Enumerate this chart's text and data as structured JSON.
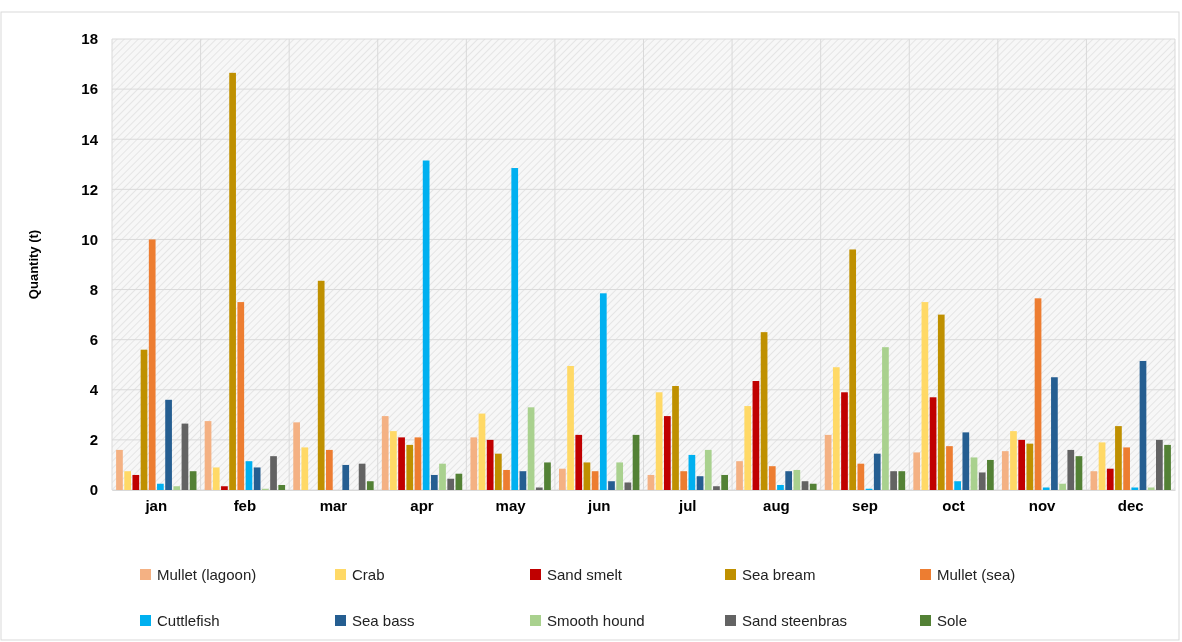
{
  "chart_data": {
    "type": "bar",
    "ylabel": "Quantity (t)",
    "categories": [
      "jan",
      "feb",
      "mar",
      "apr",
      "may",
      "jun",
      "jul",
      "aug",
      "sep",
      "oct",
      "nov",
      "dec"
    ],
    "ylim": [
      0,
      18
    ],
    "yticks": [
      0,
      2,
      4,
      6,
      8,
      10,
      12,
      14,
      16,
      18
    ],
    "grid": true,
    "legend": "bottom",
    "series": [
      {
        "name": "Mullet (lagoon)",
        "color": "#f4b183",
        "values": [
          1.6,
          2.75,
          2.7,
          2.95,
          2.1,
          0.85,
          0.6,
          1.15,
          2.2,
          1.5,
          1.55,
          0.75
        ]
      },
      {
        "name": "Crab",
        "color": "#ffd966",
        "values": [
          0.75,
          0.9,
          1.7,
          2.35,
          3.05,
          4.95,
          3.9,
          3.35,
          4.9,
          7.5,
          2.35,
          1.9
        ]
      },
      {
        "name": "Sand smelt",
        "color": "#c00000",
        "values": [
          0.6,
          0.15,
          0,
          2.1,
          2.0,
          2.2,
          2.95,
          4.35,
          3.9,
          3.7,
          2.0,
          0.85
        ]
      },
      {
        "name": "Sea bream",
        "color": "#bf9000",
        "values": [
          5.6,
          16.65,
          8.35,
          1.8,
          1.45,
          1.1,
          4.15,
          6.3,
          9.6,
          7.0,
          1.85,
          2.55
        ]
      },
      {
        "name": "Mullet (sea)",
        "color": "#ed7d31",
        "values": [
          10.0,
          7.5,
          1.6,
          2.1,
          0.8,
          0.75,
          0.75,
          0.95,
          1.05,
          1.75,
          7.65,
          1.7
        ]
      },
      {
        "name": "Cuttlefish",
        "color": "#00b0f0",
        "values": [
          0.25,
          1.15,
          0,
          13.15,
          12.85,
          7.85,
          1.4,
          0.2,
          0.05,
          0.35,
          0.1,
          0.1
        ]
      },
      {
        "name": "Sea bass",
        "color": "#255e91",
        "values": [
          3.6,
          0.9,
          1.0,
          0.6,
          0.75,
          0.35,
          0.55,
          0.75,
          1.45,
          2.3,
          4.5,
          5.15
        ]
      },
      {
        "name": "Smooth hound",
        "color": "#a9d18e",
        "values": [
          0.15,
          0.05,
          0,
          1.05,
          3.3,
          1.1,
          1.6,
          0.8,
          5.7,
          1.3,
          0.25,
          0.1
        ]
      },
      {
        "name": "Sand steenbras",
        "color": "#636363",
        "values": [
          2.65,
          1.35,
          1.05,
          0.45,
          0.1,
          0.3,
          0.15,
          0.35,
          0.75,
          0.7,
          1.6,
          2.0
        ]
      },
      {
        "name": "Sole",
        "color": "#538135",
        "values": [
          0.75,
          0.2,
          0.35,
          0.65,
          1.1,
          2.2,
          0.6,
          0.25,
          0.75,
          1.2,
          1.35,
          1.8
        ]
      }
    ]
  }
}
